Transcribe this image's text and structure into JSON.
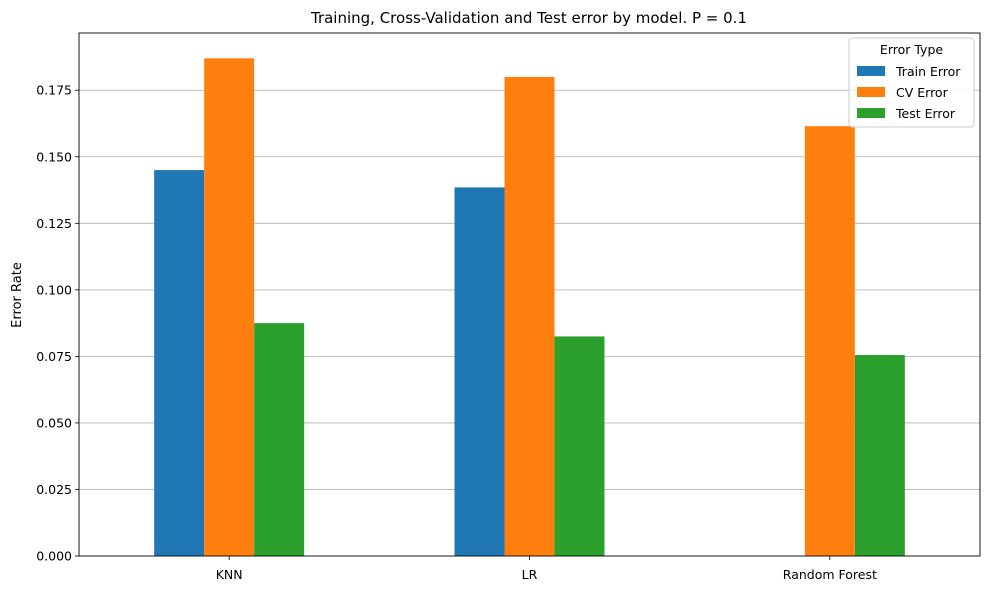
{
  "chart_data": {
    "type": "bar",
    "title": "Training, Cross-Validation and Test error by model. P = 0.1",
    "xlabel": "",
    "ylabel": "Error Rate",
    "categories": [
      "KNN",
      "LR",
      "Random Forest"
    ],
    "series": [
      {
        "name": "Train Error",
        "color": "#1f77b4",
        "values": [
          0.145,
          0.1385,
          0.0
        ]
      },
      {
        "name": "CV Error",
        "color": "#ff7f0e",
        "values": [
          0.187,
          0.18,
          0.1615
        ]
      },
      {
        "name": "Test Error",
        "color": "#2ca02c",
        "values": [
          0.0875,
          0.0825,
          0.0755
        ]
      }
    ],
    "ylim": [
      0,
      0.1965
    ],
    "yticks": [
      "0.000",
      "0.025",
      "0.050",
      "0.075",
      "0.100",
      "0.125",
      "0.150",
      "0.175"
    ],
    "grid": "y",
    "legend": {
      "title": "Error Type",
      "placement": "top-right"
    }
  }
}
